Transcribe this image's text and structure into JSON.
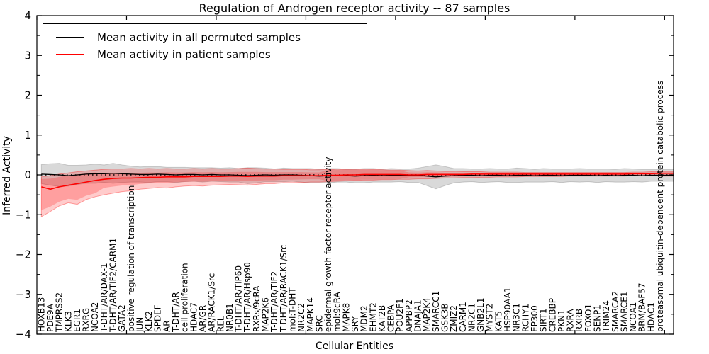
{
  "title": "Regulation of Androgen receptor activity -- 87 samples",
  "chart_data": {
    "type": "line",
    "title": "Regulation of Androgen receptor activity -- 87 samples",
    "xlabel": "Cellular Entities",
    "ylabel": "Inferred Activity",
    "ylim": [
      -4,
      4
    ],
    "yticks": [
      4,
      3,
      2,
      1,
      0,
      -1,
      -2,
      -3,
      -4
    ],
    "ytick_minor_step": 0.5,
    "x_units": 71,
    "x_major_tick_every": 10,
    "grid": false,
    "legend_position": "upper left",
    "zero_line": {
      "y": 0,
      "style": "dotted",
      "color": "#000000"
    },
    "categories": [
      "HOXB13",
      "PDE9A",
      "TMPRSS2",
      "KLK3",
      "EGR1",
      "RXRG",
      "NCOA2",
      "T-DHT/AR/DAX-1",
      "T-DHT/AR/TIF2/CARM1",
      "GATA2",
      "positive regulation of transcription",
      "JUN",
      "KLK2",
      "SPDEF",
      "AR",
      "T-DHT/AR",
      "cell proliferation",
      "HDAC7",
      "AR/GR",
      "AR/RACK1/Src",
      "REL",
      "NR0B1",
      "T-DHT/AR/TIP60",
      "T-DHT/AR/Hsp90",
      "RXRs/9cRA",
      "MAP2K6",
      "T-DHT/AR/TIF2",
      "T-DHT/AR/RACK1/Src",
      "mol:T-DHT",
      "NR2C2",
      "MAPK14",
      "SRC",
      "epidermal growth factor receptor activity",
      "mol:9cRA",
      "MAPK8",
      "SRY",
      "MDM2",
      "EHMT2",
      "KAT2B",
      "CEBPA",
      "POU2F1",
      "APPBP2",
      "DNAJA1",
      "MAP2K4",
      "SMARCC1",
      "GSK3B",
      "ZMIZ2",
      "CARM1",
      "NR2C1",
      "GNB2L1",
      "MYST2",
      "KAT5",
      "HSP90AA1",
      "NR3C1",
      "RCHY1",
      "EP300",
      "SIRT1",
      "CREBBP",
      "PKN1",
      "RXRA",
      "RXRB",
      "FOXO1",
      "SENP1",
      "TRIM24",
      "SMARCA2",
      "SMARCE1",
      "NCOA1",
      "BRM/BAF57",
      "HDAC1",
      "proteasomal ubiquitin-dependent protein catabolic process"
    ],
    "series": [
      {
        "name": "Mean activity in all permuted samples",
        "color": "#000000",
        "band_color": "rgba(120,120,120,0.28)",
        "values": [
          0.02,
          0.01,
          0.0,
          -0.02,
          0.0,
          0.02,
          0.03,
          0.03,
          0.04,
          0.03,
          0.02,
          0.01,
          0.01,
          0.02,
          0.01,
          0.0,
          0.01,
          0.01,
          0.0,
          0.01,
          0.0,
          0.0,
          -0.01,
          -0.02,
          -0.01,
          0.0,
          -0.01,
          0.0,
          0.0,
          -0.01,
          -0.02,
          -0.03,
          -0.02,
          -0.01,
          -0.02,
          -0.03,
          -0.02,
          -0.01,
          -0.02,
          -0.01,
          -0.01,
          -0.02,
          -0.01,
          -0.03,
          -0.05,
          -0.03,
          -0.02,
          -0.01,
          -0.01,
          -0.02,
          -0.01,
          -0.01,
          -0.02,
          -0.01,
          -0.01,
          -0.02,
          -0.01,
          -0.01,
          -0.02,
          -0.01,
          -0.01,
          -0.01,
          -0.02,
          -0.01,
          -0.02,
          -0.01,
          -0.01,
          -0.02,
          -0.01,
          -0.01
        ],
        "band_half_width": [
          0.24,
          0.27,
          0.29,
          0.26,
          0.24,
          0.23,
          0.24,
          0.22,
          0.25,
          0.22,
          0.2,
          0.19,
          0.2,
          0.19,
          0.18,
          0.19,
          0.18,
          0.17,
          0.18,
          0.17,
          0.17,
          0.18,
          0.17,
          0.2,
          0.19,
          0.17,
          0.16,
          0.17,
          0.16,
          0.17,
          0.18,
          0.17,
          0.18,
          0.17,
          0.16,
          0.17,
          0.18,
          0.17,
          0.16,
          0.17,
          0.16,
          0.17,
          0.18,
          0.24,
          0.3,
          0.24,
          0.18,
          0.17,
          0.16,
          0.17,
          0.17,
          0.16,
          0.17,
          0.18,
          0.17,
          0.16,
          0.17,
          0.16,
          0.17,
          0.16,
          0.17,
          0.16,
          0.17,
          0.16,
          0.16,
          0.17,
          0.16,
          0.16,
          0.15,
          0.15
        ]
      },
      {
        "name": "Mean activity in patient samples",
        "color": "#ff0000",
        "band_color": "rgba(255,0,0,0.20)",
        "inner_band_color": "rgba(255,0,0,0.22)",
        "inner_band_fraction": 0.55,
        "inner_band_bulges": [
          {
            "from": 0,
            "to": 6,
            "fraction": 0.78
          },
          {
            "from": 32,
            "to": 40,
            "fraction": 0.92
          }
        ],
        "values": [
          -0.3,
          -0.36,
          -0.3,
          -0.26,
          -0.22,
          -0.18,
          -0.14,
          -0.11,
          -0.09,
          -0.08,
          -0.08,
          -0.07,
          -0.06,
          -0.06,
          -0.05,
          -0.05,
          -0.05,
          -0.04,
          -0.04,
          -0.04,
          -0.04,
          -0.03,
          -0.03,
          -0.04,
          -0.03,
          -0.03,
          -0.03,
          -0.02,
          -0.02,
          -0.02,
          -0.02,
          -0.02,
          -0.01,
          -0.01,
          0.0,
          0.0,
          0.01,
          0.01,
          0.01,
          0.01,
          0.01,
          0.0,
          0.0,
          0.01,
          0.01,
          0.01,
          0.01,
          0.01,
          0.02,
          0.02,
          0.02,
          0.02,
          0.02,
          0.02,
          0.02,
          0.02,
          0.02,
          0.02,
          0.02,
          0.02,
          0.02,
          0.02,
          0.02,
          0.02,
          0.02,
          0.02,
          0.03,
          0.03,
          0.03,
          0.04
        ],
        "band_lower": [
          -1.05,
          -0.92,
          -0.78,
          -0.7,
          -0.74,
          -0.62,
          -0.55,
          -0.5,
          -0.46,
          -0.42,
          -0.4,
          -0.36,
          -0.34,
          -0.32,
          -0.33,
          -0.3,
          -0.28,
          -0.27,
          -0.28,
          -0.26,
          -0.25,
          -0.24,
          -0.25,
          -0.26,
          -0.24,
          -0.22,
          -0.22,
          -0.2,
          -0.2,
          -0.19,
          -0.18,
          -0.18,
          -0.17,
          -0.16,
          -0.15,
          -0.14,
          -0.13,
          -0.13,
          -0.12,
          -0.12,
          -0.11,
          -0.11,
          -0.1,
          -0.1,
          -0.09,
          -0.08,
          -0.08,
          -0.07,
          -0.07,
          -0.06,
          -0.06,
          -0.05,
          -0.05,
          -0.05,
          -0.04,
          -0.04,
          -0.04,
          -0.04,
          -0.04,
          -0.03,
          -0.03,
          -0.03,
          -0.03,
          -0.03,
          -0.03,
          -0.03,
          -0.02,
          -0.02,
          -0.02,
          -0.03
        ],
        "band_upper": [
          -0.05,
          -0.02,
          0.02,
          0.05,
          0.08,
          0.1,
          0.12,
          0.14,
          0.15,
          0.15,
          0.16,
          0.15,
          0.16,
          0.15,
          0.16,
          0.15,
          0.15,
          0.16,
          0.15,
          0.16,
          0.15,
          0.15,
          0.16,
          0.17,
          0.16,
          0.15,
          0.15,
          0.14,
          0.14,
          0.14,
          0.13,
          0.13,
          0.14,
          0.13,
          0.14,
          0.15,
          0.15,
          0.14,
          0.13,
          0.12,
          0.12,
          0.11,
          0.1,
          0.11,
          0.1,
          0.09,
          0.09,
          0.08,
          0.08,
          0.08,
          0.07,
          0.07,
          0.07,
          0.07,
          0.06,
          0.06,
          0.06,
          0.06,
          0.06,
          0.06,
          0.06,
          0.06,
          0.06,
          0.06,
          0.06,
          0.06,
          0.07,
          0.07,
          0.08,
          0.09
        ]
      }
    ]
  }
}
